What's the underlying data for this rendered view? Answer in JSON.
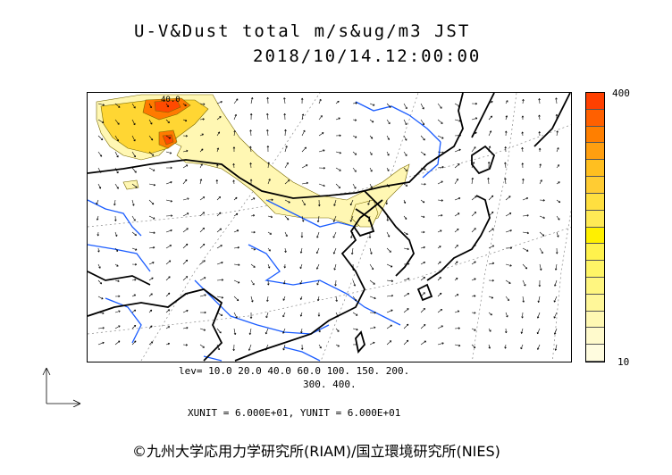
{
  "header": {
    "title": "U-V&Dust total m/s&ug/m3 JST",
    "datetime": "2018/10/14.12:00:00"
  },
  "colorbar": {
    "max_label": "400",
    "min_label": "10",
    "colors": [
      "#ff4000",
      "#ff6000",
      "#ff7f00",
      "#ff9f10",
      "#ffbf20",
      "#ffcc33",
      "#ffdf40",
      "#ffea55",
      "#fff000",
      "#fff24d",
      "#fff566",
      "#fff680",
      "#fff799",
      "#fff8b3",
      "#fffacc",
      "#fffcdf"
    ]
  },
  "levels": {
    "line1": "lev= 10.0 20.0 40.0 60.0 100. 150. 200.",
    "line2": "300. 400."
  },
  "units_text": "XUNIT = 6.000E+01, YUNIT = 6.000E+01",
  "copyright": "©九州大学応用力学研究所(RIAM)/国立環境研究所(NIES)",
  "map": {
    "contour_label": "40.0",
    "dust_colors": {
      "light": "#fff7b3",
      "mid": "#ffd633",
      "high": "#ff7a00",
      "peak": "#ff4a00"
    },
    "coast_color": "#000000",
    "river_color": "#1a5cff",
    "vector_color": "#000000"
  }
}
